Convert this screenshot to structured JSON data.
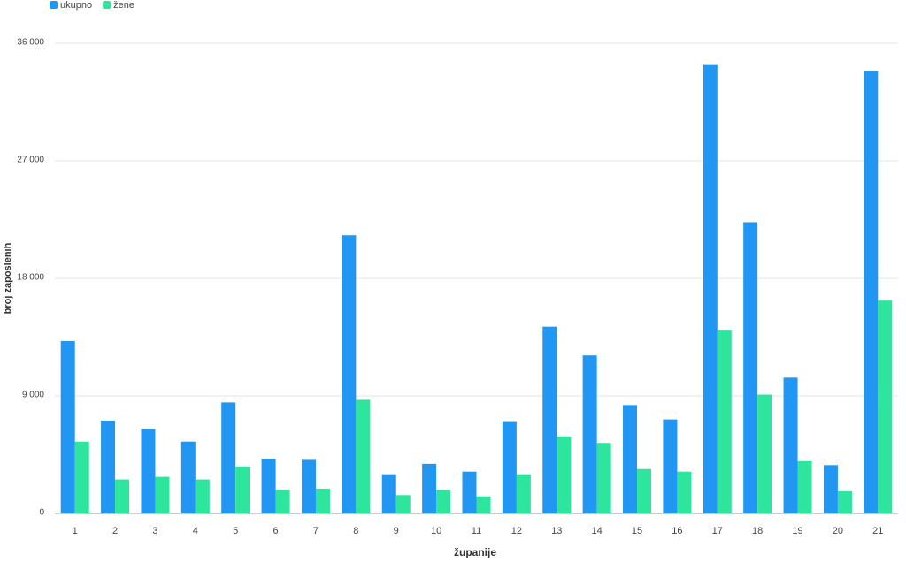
{
  "chart_data": {
    "type": "bar",
    "x_label": "županije",
    "y_label": "broj zaposlenih",
    "categories": [
      "1",
      "2",
      "3",
      "4",
      "5",
      "6",
      "7",
      "8",
      "9",
      "10",
      "11",
      "12",
      "13",
      "14",
      "15",
      "16",
      "17",
      "18",
      "19",
      "20",
      "21"
    ],
    "series": [
      {
        "name": "ukupno",
        "color": "#2196f3",
        "values": [
          13200,
          7100,
          6500,
          5500,
          8500,
          4200,
          4100,
          21300,
          3000,
          3800,
          3200,
          7000,
          14300,
          12100,
          8300,
          7200,
          34400,
          22300,
          10400,
          3700,
          33900
        ]
      },
      {
        "name": "žene",
        "color": "#2ee59d",
        "values": [
          5500,
          2600,
          2800,
          2600,
          3600,
          1800,
          1900,
          8700,
          1400,
          1800,
          1300,
          3000,
          5900,
          5400,
          3400,
          3200,
          14000,
          9100,
          4000,
          1700,
          16300
        ]
      }
    ],
    "ylim": [
      0,
      36000
    ],
    "yticks": [
      0,
      {
        "value": 9000,
        "label": "9 000"
      },
      {
        "value": 18000,
        "label": "18 000"
      },
      {
        "value": 27000,
        "label": "27 000"
      },
      {
        "value": 36000,
        "label": "36 000"
      }
    ],
    "grid": true,
    "legend": "top-left"
  }
}
